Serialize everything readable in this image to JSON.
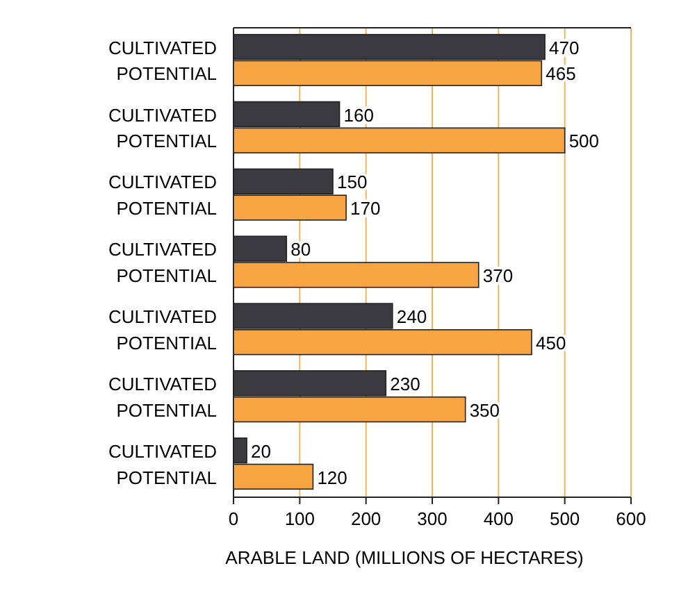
{
  "chart_data": {
    "type": "bar",
    "orientation": "horizontal",
    "categories": [
      null,
      null,
      null,
      null,
      null,
      null,
      null
    ],
    "series": [
      {
        "name": "CULTIVATED",
        "color": "#3b3a40",
        "values": [
          470,
          160,
          150,
          80,
          240,
          230,
          20
        ]
      },
      {
        "name": "POTENTIAL",
        "color": "#f7a443",
        "values": [
          465,
          500,
          170,
          370,
          450,
          350,
          120
        ]
      }
    ],
    "xlabel": "ARABLE LAND (MILLIONS OF HECTARES)",
    "xlim": [
      0,
      600
    ],
    "xticks": [
      0,
      100,
      200,
      300,
      400,
      500,
      600
    ],
    "grid": "x",
    "data_labels": true
  }
}
